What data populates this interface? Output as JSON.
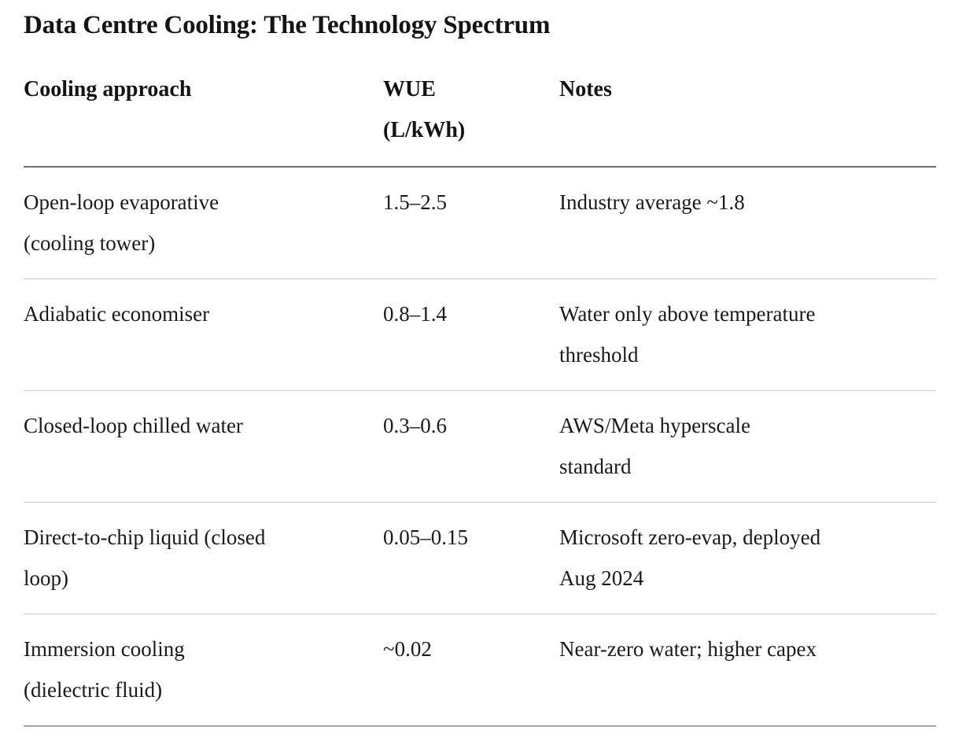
{
  "title": "Data Centre Cooling: The Technology Spectrum",
  "table": {
    "headers": {
      "approach": "Cooling approach",
      "wue": "WUE\n(L/kWh)",
      "notes": "Notes"
    },
    "rows": [
      {
        "approach": "Open-loop evaporative\n(cooling tower)",
        "wue": "1.5–2.5",
        "notes": "Industry average ~1.8"
      },
      {
        "approach": "Adiabatic economiser",
        "wue": "0.8–1.4",
        "notes": "Water only above temperature\nthreshold"
      },
      {
        "approach": "Closed-loop chilled water",
        "wue": "0.3–0.6",
        "notes": "AWS/Meta hyperscale\nstandard"
      },
      {
        "approach": "Direct-to-chip liquid (closed\nloop)",
        "wue": "0.05–0.15",
        "notes": "Microsoft zero-evap, deployed\nAug 2024"
      },
      {
        "approach": "Immersion cooling\n(dielectric fluid)",
        "wue": "~0.02",
        "notes": "Near-zero water; higher capex"
      }
    ]
  },
  "colors": {
    "text": "#1a1a1a",
    "title": "#141414",
    "header_divider": "#6f6f6f",
    "row_divider": "#cbcbcb",
    "bottom_divider": "#a3a3a3",
    "background": "#ffffff"
  }
}
